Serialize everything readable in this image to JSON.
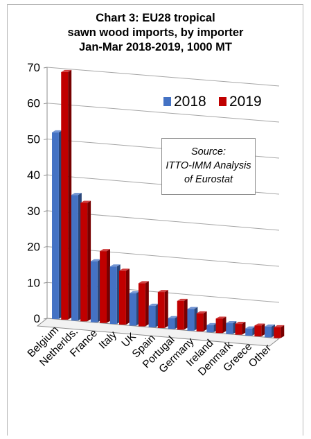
{
  "chart_data": {
    "type": "bar",
    "title_lines": [
      "Chart 3: EU28 tropical",
      "sawn wood imports, by importer",
      "Jan-Mar 2018-2019, 1000 MT"
    ],
    "categories": [
      "Belgium",
      "Netherlds.",
      "France",
      "Italy",
      "UK",
      "Spain",
      "Portugal",
      "Germany",
      "Ireland",
      "Denmark",
      "Greece",
      "Other"
    ],
    "series": [
      {
        "name": "2018",
        "color": "#4472c4",
        "values": [
          52,
          35,
          17,
          16,
          9,
          6,
          3,
          6,
          2,
          3,
          2,
          3
        ]
      },
      {
        "name": "2019",
        "color": "#c00000",
        "values": [
          69,
          33,
          20,
          15,
          12,
          10,
          8,
          5,
          4,
          3,
          3,
          3
        ]
      }
    ],
    "y_ticks": [
      "0",
      "10",
      "20",
      "30",
      "40",
      "50",
      "60",
      "70"
    ],
    "ylim": [
      0,
      70
    ],
    "grid": true,
    "legend_position": "top-right",
    "annotation_lines": [
      "Source:",
      "ITTO-IMM Analysis",
      "of Eurostat"
    ]
  }
}
